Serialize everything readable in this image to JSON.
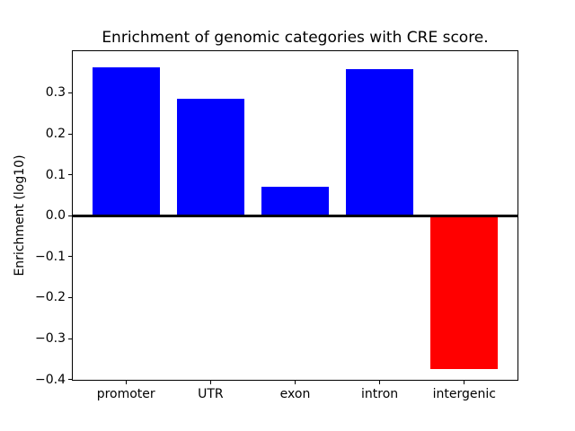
{
  "chart_data": {
    "type": "bar",
    "title": "Enrichment of genomic categories with CRE score.",
    "xlabel": "",
    "ylabel": "Enrichment (log10)",
    "categories": [
      "promoter",
      "UTR",
      "exon",
      "intron",
      "intergenic"
    ],
    "values": [
      0.363,
      0.285,
      0.07,
      0.358,
      -0.375
    ],
    "bar_colors": [
      "#0000ff",
      "#0000ff",
      "#0000ff",
      "#0000ff",
      "#ff0000"
    ],
    "positive_color": "#0000ff",
    "negative_color": "#ff0000",
    "ylim": [
      -0.403,
      0.404
    ],
    "yticks": [
      0.3,
      0.2,
      0.1,
      0.0,
      -0.1,
      -0.2,
      -0.3,
      -0.4
    ],
    "ytick_labels": [
      "0.3",
      "0.2",
      "0.1",
      "0.0",
      "−0.1",
      "−0.2",
      "−0.3",
      "−0.4"
    ],
    "grid": false,
    "legend": null,
    "zero_line": true,
    "axis_color": "#000000",
    "background_color": "#ffffff"
  }
}
